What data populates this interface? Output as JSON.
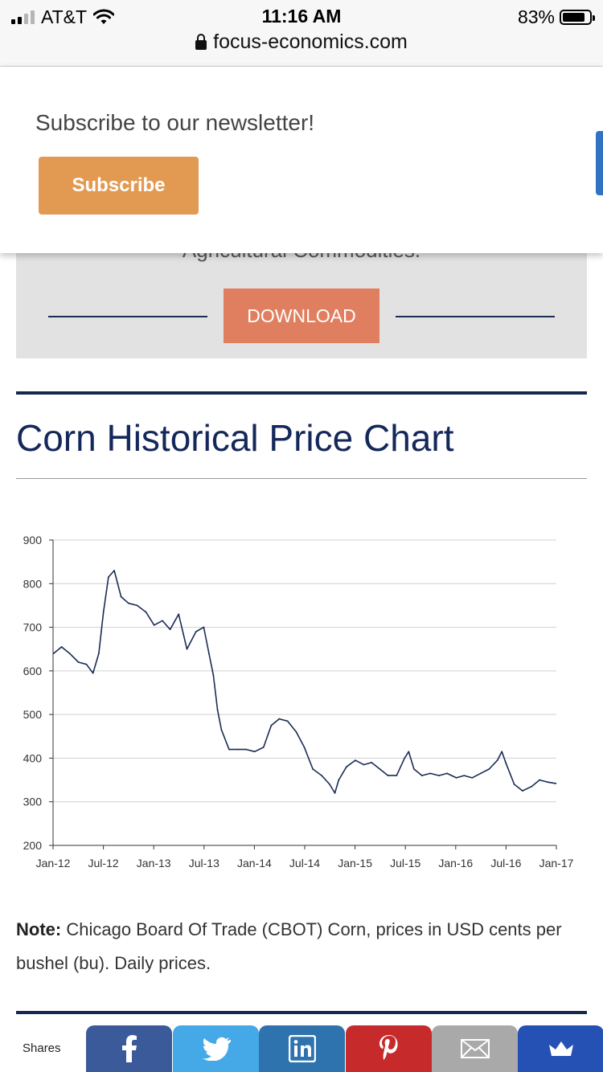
{
  "status_bar": {
    "carrier": "AT&T",
    "time": "11:16 AM",
    "battery": "83%",
    "battery_level": 0.83,
    "url": "focus-economics.com"
  },
  "popup": {
    "title": "Subscribe to our newsletter!",
    "button": "Subscribe",
    "close": "✕"
  },
  "download_band": {
    "partial_text": "Agricultural Commodities.",
    "button": "DOWNLOAD"
  },
  "section": {
    "title": "Corn Historical Price Chart"
  },
  "chart_data": {
    "type": "line",
    "title": "",
    "xlabel": "",
    "ylabel": "",
    "ylim": [
      200,
      900
    ],
    "yticks": [
      200,
      300,
      400,
      500,
      600,
      700,
      800,
      900
    ],
    "xticks": [
      "Jan-12",
      "Jul-12",
      "Jan-13",
      "Jul-13",
      "Jan-14",
      "Jul-14",
      "Jan-15",
      "Jul-15",
      "Jan-16",
      "Jul-16",
      "Jan-17"
    ],
    "grid": true,
    "legend": "none",
    "line_color": "#1b2c55",
    "series": [
      {
        "x": [
          "2012-01-03",
          "2012-02-01",
          "2012-03-01",
          "2012-04-02",
          "2012-05-01",
          "2012-05-25",
          "2012-06-15",
          "2012-07-02",
          "2012-07-20",
          "2012-08-10",
          "2012-09-04",
          "2012-10-01",
          "2012-11-01",
          "2012-12-03",
          "2013-01-02",
          "2013-02-01",
          "2013-03-01",
          "2013-04-01",
          "2013-05-01",
          "2013-06-03",
          "2013-07-01",
          "2013-07-20",
          "2013-08-05",
          "2013-08-20",
          "2013-09-03",
          "2013-10-01",
          "2013-11-01",
          "2013-12-02",
          "2014-01-02",
          "2014-02-03",
          "2014-03-03",
          "2014-04-01",
          "2014-05-01",
          "2014-06-02",
          "2014-07-01",
          "2014-08-01",
          "2014-09-02",
          "2014-10-01",
          "2014-10-20",
          "2014-11-03",
          "2014-12-01",
          "2015-01-02",
          "2015-02-02",
          "2015-03-02",
          "2015-04-01",
          "2015-05-01",
          "2015-06-01",
          "2015-06-30",
          "2015-07-15",
          "2015-08-03",
          "2015-09-01",
          "2015-10-01",
          "2015-11-02",
          "2015-12-01",
          "2016-01-04",
          "2016-02-01",
          "2016-03-01",
          "2016-04-01",
          "2016-05-02",
          "2016-06-01",
          "2016-06-17",
          "2016-07-01",
          "2016-08-01",
          "2016-08-31",
          "2016-10-03",
          "2016-11-01",
          "2016-12-01",
          "2016-12-30"
        ],
        "values": [
          640,
          655,
          640,
          620,
          615,
          595,
          640,
          735,
          815,
          830,
          770,
          755,
          750,
          735,
          705,
          715,
          695,
          730,
          650,
          690,
          700,
          640,
          590,
          510,
          465,
          420,
          420,
          420,
          415,
          425,
          475,
          490,
          485,
          460,
          425,
          375,
          360,
          340,
          320,
          350,
          380,
          395,
          385,
          390,
          375,
          360,
          360,
          400,
          415,
          375,
          360,
          365,
          360,
          365,
          355,
          360,
          355,
          365,
          375,
          395,
          415,
          390,
          340,
          325,
          335,
          350,
          345,
          342
        ]
      }
    ]
  },
  "note": {
    "label": "Note:",
    "text": " Chicago Board Of Trade (CBOT) Corn, prices in USD cents per bushel (bu). Daily prices."
  },
  "share": {
    "label": "Shares",
    "buttons": [
      {
        "name": "facebook",
        "color": "#3b5a99"
      },
      {
        "name": "twitter",
        "color": "#45a9e7"
      },
      {
        "name": "linkedin",
        "color": "#2e72ae"
      },
      {
        "name": "pinterest",
        "color": "#c72a2a"
      },
      {
        "name": "email",
        "color": "#a9a9a9"
      },
      {
        "name": "sumo",
        "color": "#2451b3"
      }
    ]
  }
}
